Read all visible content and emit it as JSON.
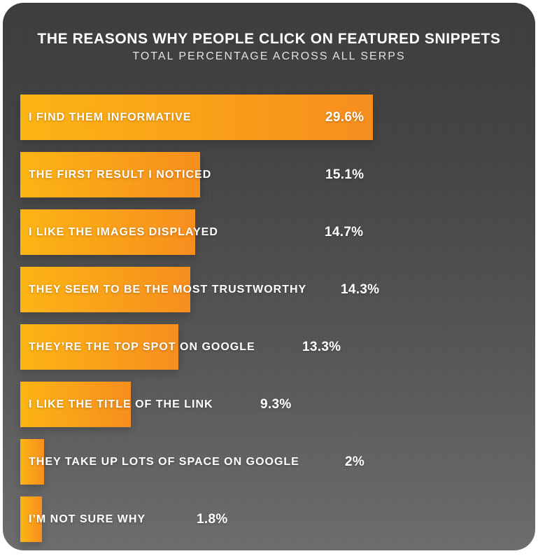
{
  "header": {
    "title": "THE REASONS WHY PEOPLE CLICK ON FEATURED SNIPPETS",
    "subtitle": "TOTAL PERCENTAGE ACROSS ALL SERPS"
  },
  "chart_data": {
    "type": "bar",
    "orientation": "horizontal",
    "title": "THE REASONS WHY PEOPLE CLICK ON FEATURED SNIPPETS",
    "subtitle": "TOTAL PERCENTAGE ACROSS ALL SERPS",
    "categories": [
      "I FIND THEM INFORMATIVE",
      "THE FIRST RESULT I NOTICED",
      "I LIKE THE IMAGES DISPLAYED",
      "THEY SEEM TO BE THE MOST TRUSTWORTHY",
      "THEY’RE THE TOP SPOT ON GOOGLE",
      "I LIKE THE TITLE OF THE LINK",
      "THEY TAKE UP LOTS OF SPACE ON GOOGLE",
      "I’M NOT SURE WHY"
    ],
    "values": [
      29.6,
      15.1,
      14.7,
      14.3,
      13.3,
      9.3,
      2,
      1.8
    ],
    "value_labels": [
      "29.6%",
      "15.1%",
      "14.7%",
      "14.3%",
      "13.3%",
      "9.3%",
      "2%",
      "1.8%"
    ],
    "xlim": [
      0,
      29.6
    ],
    "grid": false,
    "legend": false,
    "colors": {
      "bar_gradient_left": "#fcb414",
      "bar_gradient_right": "#f78e1e",
      "background_top": "#3c3c3c",
      "background_bottom": "#6d6d6d",
      "text": "#ffffff"
    }
  }
}
